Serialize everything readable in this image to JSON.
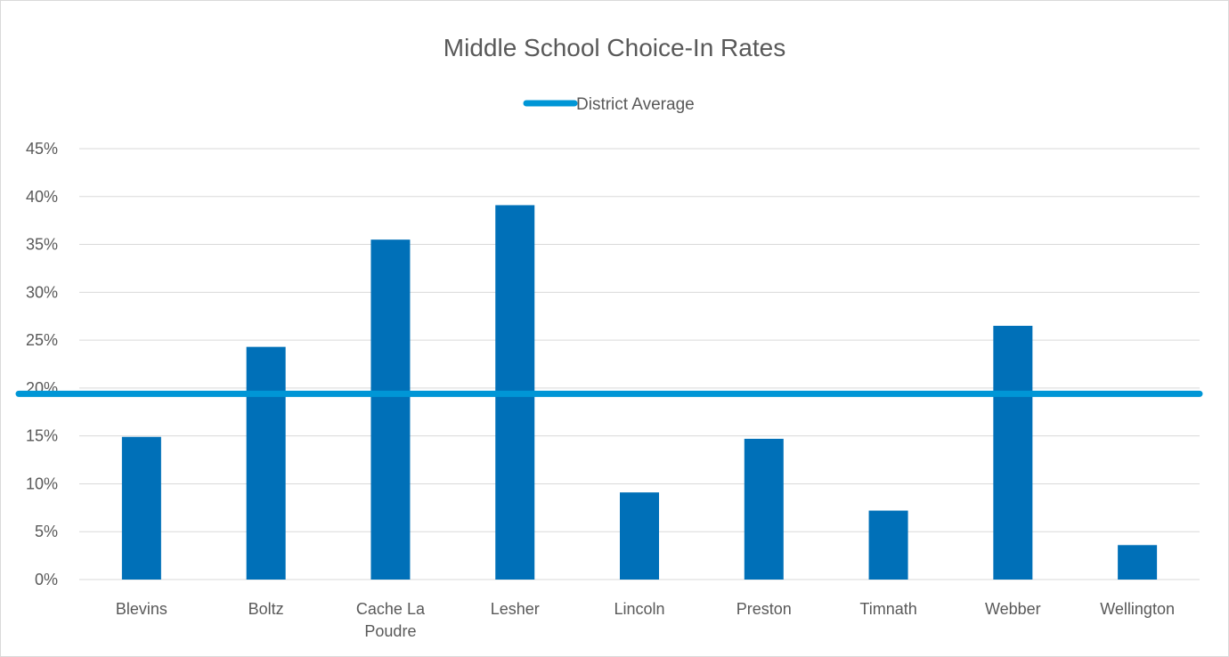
{
  "chart_data": {
    "type": "bar",
    "title": "Middle School Choice-In Rates",
    "xlabel": "",
    "ylabel": "",
    "categories": [
      "Blevins",
      "Boltz",
      "Cache La Poudre",
      "Lesher",
      "Lincoln",
      "Preston",
      "Timnath",
      "Webber",
      "Wellington"
    ],
    "category_label_lines": [
      [
        "Blevins"
      ],
      [
        "Boltz"
      ],
      [
        "Cache La",
        "Poudre"
      ],
      [
        "Lesher"
      ],
      [
        "Lincoln"
      ],
      [
        "Preston"
      ],
      [
        "Timnath"
      ],
      [
        "Webber"
      ],
      [
        "Wellington"
      ]
    ],
    "series": [
      {
        "values": [
          0.149,
          0.243,
          0.355,
          0.391,
          0.091,
          0.147,
          0.072,
          0.265,
          0.036
        ],
        "color": "#0070b8"
      }
    ],
    "reference_line": {
      "name": "District Average",
      "value": 0.194,
      "color": "#0096d6"
    },
    "ylim": [
      0,
      0.45
    ],
    "y_tick_labels": [
      "0%",
      "5%",
      "10%",
      "15%",
      "20%",
      "25%",
      "30%",
      "35%",
      "40%",
      "45%"
    ],
    "grid": true,
    "legend_position": "top"
  }
}
